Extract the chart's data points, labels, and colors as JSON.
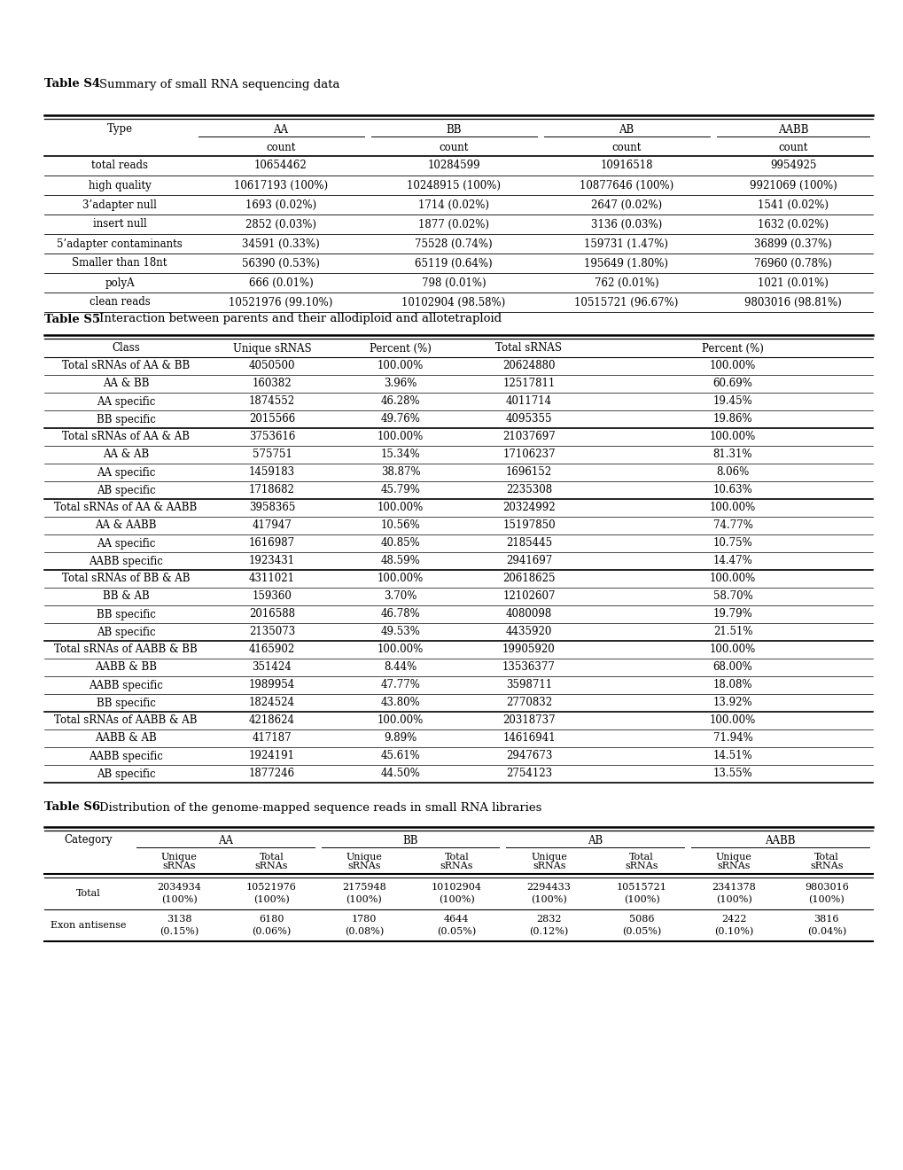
{
  "table_s4": {
    "title_bold": "Table S4",
    "title_normal": " Summary of small RNA sequencing data",
    "headers": [
      "Type",
      "AA",
      "BB",
      "AB",
      "AABB"
    ],
    "subheaders": [
      "",
      "count",
      "count",
      "count",
      "count"
    ],
    "rows": [
      [
        "total reads",
        "10654462",
        "10284599",
        "10916518",
        "9954925"
      ],
      [
        "high quality",
        "10617193 (100%)",
        "10248915 (100%)",
        "10877646 (100%)",
        "9921069 (100%)"
      ],
      [
        "3’adapter null",
        "1693 (0.02%)",
        "1714 (0.02%)",
        "2647 (0.02%)",
        "1541 (0.02%)"
      ],
      [
        "insert null",
        "2852 (0.03%)",
        "1877 (0.02%)",
        "3136 (0.03%)",
        "1632 (0.02%)"
      ],
      [
        "5’adapter contaminants",
        "34591 (0.33%)",
        "75528 (0.74%)",
        "159731 (1.47%)",
        "36899 (0.37%)"
      ],
      [
        "Smaller than 18nt",
        "56390 (0.53%)",
        "65119 (0.64%)",
        "195649 (1.80%)",
        "76960 (0.78%)"
      ],
      [
        "polyA",
        "666 (0.01%)",
        "798 (0.01%)",
        "762 (0.01%)",
        "1021 (0.01%)"
      ],
      [
        "clean reads",
        "10521976 (99.10%)",
        "10102904 (98.58%)",
        "10515721 (96.67%)",
        "9803016 (98.81%)"
      ]
    ]
  },
  "table_s5": {
    "title_bold": "Table S5",
    "title_normal": " Interaction between parents and their allodiploid and allotetraploid",
    "headers": [
      "Class",
      "Unique sRNAS",
      "Percent (%)",
      "Total sRNAS",
      "Percent (%)"
    ],
    "rows": [
      [
        "Total sRNAs of AA & BB",
        "4050500",
        "100.00%",
        "20624880",
        "100.00%"
      ],
      [
        "AA & BB",
        "160382",
        "3.96%",
        "12517811",
        "60.69%"
      ],
      [
        "AA specific",
        "1874552",
        "46.28%",
        "4011714",
        "19.45%"
      ],
      [
        "BB specific",
        "2015566",
        "49.76%",
        "4095355",
        "19.86%"
      ],
      [
        "Total sRNAs of AA & AB",
        "3753616",
        "100.00%",
        "21037697",
        "100.00%"
      ],
      [
        "AA & AB",
        "575751",
        "15.34%",
        "17106237",
        "81.31%"
      ],
      [
        "AA specific",
        "1459183",
        "38.87%",
        "1696152",
        "8.06%"
      ],
      [
        "AB specific",
        "1718682",
        "45.79%",
        "2235308",
        "10.63%"
      ],
      [
        "Total sRNAs of AA & AABB",
        "3958365",
        "100.00%",
        "20324992",
        "100.00%"
      ],
      [
        "AA & AABB",
        "417947",
        "10.56%",
        "15197850",
        "74.77%"
      ],
      [
        "AA specific",
        "1616987",
        "40.85%",
        "2185445",
        "10.75%"
      ],
      [
        "AABB specific",
        "1923431",
        "48.59%",
        "2941697",
        "14.47%"
      ],
      [
        "Total sRNAs of BB & AB",
        "4311021",
        "100.00%",
        "20618625",
        "100.00%"
      ],
      [
        "BB & AB",
        "159360",
        "3.70%",
        "12102607",
        "58.70%"
      ],
      [
        "BB specific",
        "2016588",
        "46.78%",
        "4080098",
        "19.79%"
      ],
      [
        "AB specific",
        "2135073",
        "49.53%",
        "4435920",
        "21.51%"
      ],
      [
        "Total sRNAs of AABB & BB",
        "4165902",
        "100.00%",
        "19905920",
        "100.00%"
      ],
      [
        "AABB & BB",
        "351424",
        "8.44%",
        "13536377",
        "68.00%"
      ],
      [
        "AABB specific",
        "1989954",
        "47.77%",
        "3598711",
        "18.08%"
      ],
      [
        "BB specific",
        "1824524",
        "43.80%",
        "2770832",
        "13.92%"
      ],
      [
        "Total sRNAs of AABB & AB",
        "4218624",
        "100.00%",
        "20318737",
        "100.00%"
      ],
      [
        "AABB & AB",
        "417187",
        "9.89%",
        "14616941",
        "71.94%"
      ],
      [
        "AABB specific",
        "1924191",
        "45.61%",
        "2947673",
        "14.51%"
      ],
      [
        "AB specific",
        "1877246",
        "44.50%",
        "2754123",
        "13.55%"
      ]
    ],
    "group_rows": [
      0,
      4,
      8,
      12,
      16,
      20
    ]
  },
  "table_s6": {
    "title_bold": "Table S6",
    "title_normal": " Distribution of the genome-mapped sequence reads in small RNA libraries",
    "group_headers": [
      "AA",
      "BB",
      "AB",
      "AABB"
    ],
    "rows": [
      [
        "Total",
        "2034934",
        "10521976",
        "2175948",
        "10102904",
        "2294433",
        "10515721",
        "2341378",
        "9803016",
        "(100%)",
        "(100%)",
        "(100%)",
        "(100%)",
        "(100%)",
        "(100%)",
        "(100%)",
        "(100%)"
      ],
      [
        "Exon antisense",
        "3138",
        "6180",
        "1780",
        "4644",
        "2832",
        "5086",
        "2422",
        "3816",
        "(0.15%)",
        "(0.06%)",
        "(0.08%)",
        "(0.05%)",
        "(0.12%)",
        "(0.05%)",
        "(0.10%)",
        "(0.04%)"
      ]
    ]
  },
  "bg_color": "#ffffff",
  "text_color": "#000000"
}
